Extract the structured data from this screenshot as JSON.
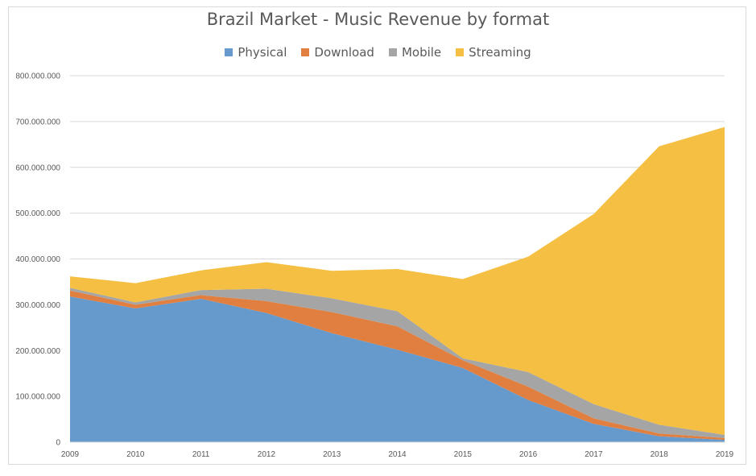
{
  "chart_data": {
    "type": "area",
    "stacked": true,
    "title": "Brazil Market - Music Revenue by format",
    "xlabel": "",
    "ylabel": "",
    "x": [
      "2009",
      "2010",
      "2011",
      "2012",
      "2013",
      "2014",
      "2015",
      "2016",
      "2017",
      "2018",
      "2019"
    ],
    "ylim": [
      0,
      800000000
    ],
    "yticks": [
      0,
      100000000,
      200000000,
      300000000,
      400000000,
      500000000,
      600000000,
      700000000,
      800000000
    ],
    "ytick_labels": [
      "0",
      "100.000.000",
      "200.000.000",
      "300.000.000",
      "400.000.000",
      "500.000.000",
      "600.000.000",
      "700.000.000",
      "800.000.000"
    ],
    "grid": true,
    "legend_position": "top",
    "series": [
      {
        "name": "Physical",
        "color": "#6699cc",
        "values": [
          318000000,
          292000000,
          313000000,
          282000000,
          238000000,
          202000000,
          162000000,
          92000000,
          40000000,
          13000000,
          5000000
        ]
      },
      {
        "name": "Download",
        "color": "#e07f3f",
        "values": [
          13000000,
          8000000,
          8000000,
          26000000,
          46000000,
          51000000,
          17000000,
          29000000,
          12000000,
          6000000,
          4000000
        ]
      },
      {
        "name": "Mobile",
        "color": "#a5a5a5",
        "values": [
          6000000,
          5000000,
          11000000,
          27000000,
          30000000,
          33000000,
          4000000,
          32000000,
          31000000,
          19000000,
          7000000
        ]
      },
      {
        "name": "Streaming",
        "color": "#f4bf42",
        "values": [
          25000000,
          42000000,
          43000000,
          58000000,
          60000000,
          92000000,
          173000000,
          252000000,
          415000000,
          608000000,
          672000000
        ]
      }
    ]
  }
}
